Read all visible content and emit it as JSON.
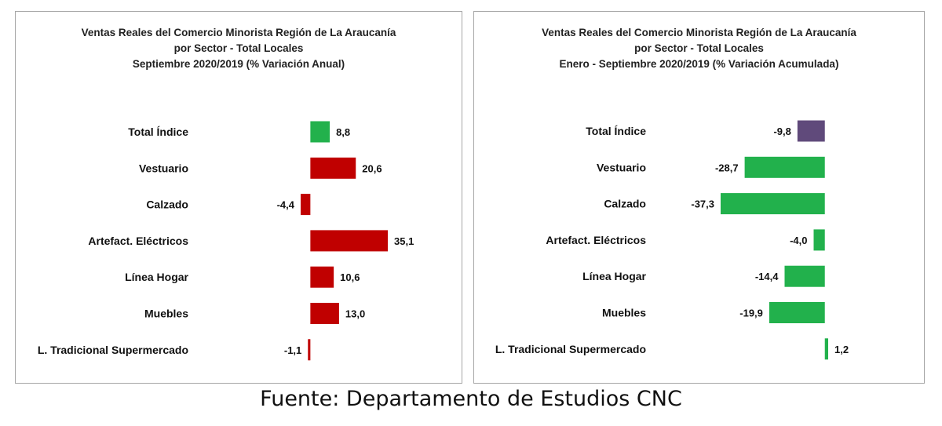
{
  "chart_data": [
    {
      "type": "bar",
      "orientation": "horizontal",
      "title_lines": [
        "Ventas Reales del Comercio Minorista  Región de La Araucanía",
        "por Sector  - Total Locales",
        "Septiembre 2020/2019  (% Variación Anual)"
      ],
      "categories": [
        "Total Índice",
        "Vestuario",
        "Calzado",
        "Artefact. Eléctricos",
        "Línea Hogar",
        "Muebles",
        "L. Tradicional Supermercado"
      ],
      "values": [
        8.8,
        20.6,
        -4.4,
        35.1,
        10.6,
        13.0,
        -1.1
      ],
      "value_labels": [
        "8,8",
        "20,6",
        "-4,4",
        "35,1",
        "10,6",
        "13,0",
        "-1,1"
      ],
      "colors": [
        "#22b14c",
        "#c00000",
        "#c00000",
        "#c00000",
        "#c00000",
        "#c00000",
        "#c00000"
      ],
      "xlim": [
        -4.4,
        35.1
      ],
      "grid": false,
      "legend": false
    },
    {
      "type": "bar",
      "orientation": "horizontal",
      "title_lines": [
        "Ventas Reales del Comercio Minorista Región de La Araucanía",
        "por Sector - Total Locales",
        "Enero - Septiembre 2020/2019  (% Variación Acumulada)"
      ],
      "categories": [
        "Total Índice",
        "Vestuario",
        "Calzado",
        "Artefact. Eléctricos",
        "Línea Hogar",
        "Muebles",
        "L. Tradicional Supermercado"
      ],
      "values": [
        -9.8,
        -28.7,
        -37.3,
        -4.0,
        -14.4,
        -19.9,
        1.2
      ],
      "value_labels": [
        "-9,8",
        "-28,7",
        "-37,3",
        "-4,0",
        "-14,4",
        "-19,9",
        "1,2"
      ],
      "colors": [
        "#604a7b",
        "#22b14c",
        "#22b14c",
        "#22b14c",
        "#22b14c",
        "#22b14c",
        "#22b14c"
      ],
      "xlim": [
        -37.3,
        1.2
      ],
      "grid": false,
      "legend": false
    }
  ],
  "source": "Fuente: Departamento de Estudios CNC"
}
